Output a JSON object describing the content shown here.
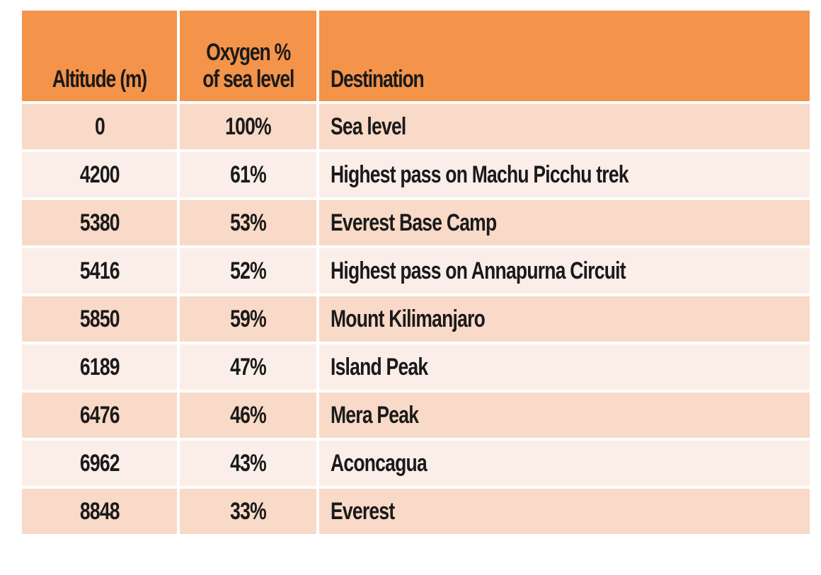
{
  "chart_data": {
    "type": "table",
    "columns": [
      "Altitude (m)",
      "Oxygen %",
      "of sea level",
      "Destination"
    ],
    "header": {
      "altitude": "Altitude (m)",
      "oxygen_line1": "Oxygen %",
      "oxygen_line2": "of sea level",
      "destination": "Destination"
    },
    "rows": [
      {
        "altitude": "0",
        "oxygen": "100%",
        "destination": "Sea level"
      },
      {
        "altitude": "4200",
        "oxygen": "61%",
        "destination": "Highest pass on Machu Picchu trek"
      },
      {
        "altitude": "5380",
        "oxygen": "53%",
        "destination": "Everest Base Camp"
      },
      {
        "altitude": "5416",
        "oxygen": "52%",
        "destination": "Highest pass on Annapurna Circuit"
      },
      {
        "altitude": "5850",
        "oxygen": "59%",
        "destination": "Mount Kilimanjaro"
      },
      {
        "altitude": "6189",
        "oxygen": "47%",
        "destination": "Island Peak"
      },
      {
        "altitude": "6476",
        "oxygen": "46%",
        "destination": "Mera Peak"
      },
      {
        "altitude": "6962",
        "oxygen": "43%",
        "destination": "Aconcagua"
      },
      {
        "altitude": "8848",
        "oxygen": "33%",
        "destination": "Everest"
      }
    ]
  },
  "colors": {
    "header_bg": "#f4934a",
    "row_odd_bg": "#f9d9c7",
    "row_even_bg": "#fbeee8",
    "text": "#1a1a1a"
  }
}
